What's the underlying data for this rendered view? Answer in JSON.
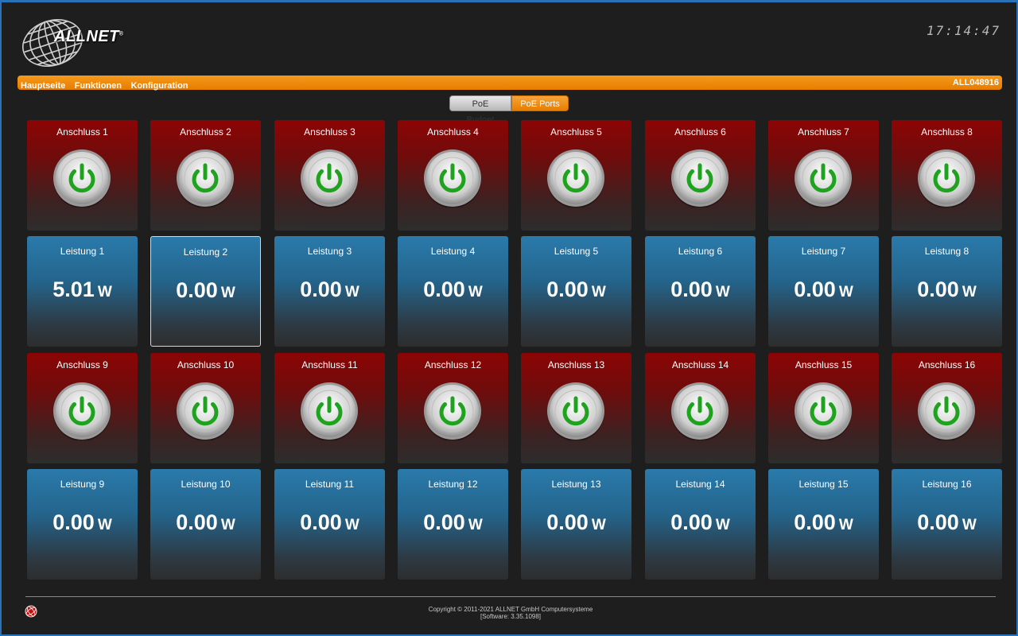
{
  "header": {
    "brand": "ALLNET",
    "brand_mark": "®",
    "clock": "17:14:47"
  },
  "nav": {
    "items": [
      "Hauptseite",
      "Funktionen",
      "Konfiguration"
    ],
    "device_id": "ALL048916"
  },
  "tabs": {
    "budget_label": "PoE Budget",
    "ports_label": "PoE Ports",
    "active": "PoE Ports"
  },
  "ports": [
    {
      "name": "Anschluss 1",
      "power_label": "Leistung 1",
      "power": "5.01",
      "unit": "W"
    },
    {
      "name": "Anschluss 2",
      "power_label": "Leistung 2",
      "power": "0.00",
      "unit": "W"
    },
    {
      "name": "Anschluss 3",
      "power_label": "Leistung 3",
      "power": "0.00",
      "unit": "W"
    },
    {
      "name": "Anschluss 4",
      "power_label": "Leistung 4",
      "power": "0.00",
      "unit": "W"
    },
    {
      "name": "Anschluss 5",
      "power_label": "Leistung 5",
      "power": "0.00",
      "unit": "W"
    },
    {
      "name": "Anschluss 6",
      "power_label": "Leistung 6",
      "power": "0.00",
      "unit": "W"
    },
    {
      "name": "Anschluss 7",
      "power_label": "Leistung 7",
      "power": "0.00",
      "unit": "W"
    },
    {
      "name": "Anschluss 8",
      "power_label": "Leistung 8",
      "power": "0.00",
      "unit": "W"
    },
    {
      "name": "Anschluss 9",
      "power_label": "Leistung 9",
      "power": "0.00",
      "unit": "W"
    },
    {
      "name": "Anschluss 10",
      "power_label": "Leistung 10",
      "power": "0.00",
      "unit": "W"
    },
    {
      "name": "Anschluss 11",
      "power_label": "Leistung 11",
      "power": "0.00",
      "unit": "W"
    },
    {
      "name": "Anschluss 12",
      "power_label": "Leistung 12",
      "power": "0.00",
      "unit": "W"
    },
    {
      "name": "Anschluss 13",
      "power_label": "Leistung 13",
      "power": "0.00",
      "unit": "W"
    },
    {
      "name": "Anschluss 14",
      "power_label": "Leistung 14",
      "power": "0.00",
      "unit": "W"
    },
    {
      "name": "Anschluss 15",
      "power_label": "Leistung 15",
      "power": "0.00",
      "unit": "W"
    },
    {
      "name": "Anschluss 16",
      "power_label": "Leistung 16",
      "power": "0.00",
      "unit": "W"
    }
  ],
  "icons": {
    "port_button": "power-icon",
    "footer": "allnet-round-icon"
  },
  "colors": {
    "accent": "#e77c00",
    "port_tile": "#8c0505",
    "power_tile": "#2a7aab",
    "power_on": "#1fa31f"
  },
  "footer": {
    "copyright": "Copyright © 2011-2021 ALLNET GmbH Computersysteme",
    "software": "[Software: 3.35.1098]"
  }
}
